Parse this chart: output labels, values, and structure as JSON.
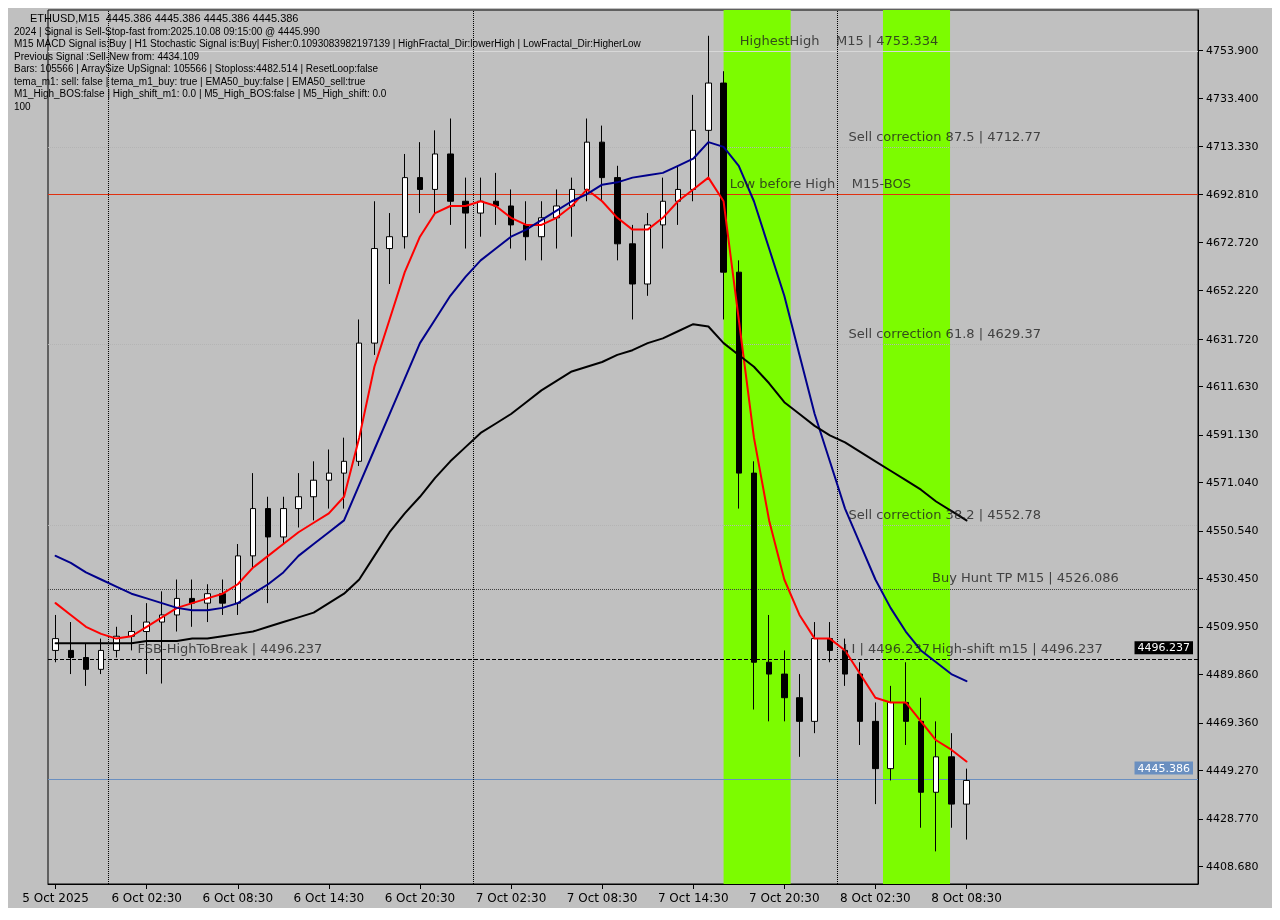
{
  "chart_data": {
    "type": "candlestick",
    "title": "ETHUSD,M15  4445.386 4445.386 4445.386 4445.386",
    "x": [
      "2025-10-05T20:30",
      "2025-10-05T21:30",
      "2025-10-05T22:30",
      "2025-10-05T23:30",
      "2025-10-06T00:30",
      "2025-10-06T01:30",
      "2025-10-06T02:30",
      "2025-10-06T03:30",
      "2025-10-06T04:30",
      "2025-10-06T05:30",
      "2025-10-06T06:30",
      "2025-10-06T07:30",
      "2025-10-06T08:30",
      "2025-10-06T09:30",
      "2025-10-06T10:30",
      "2025-10-06T11:30",
      "2025-10-06T12:30",
      "2025-10-06T13:30",
      "2025-10-06T14:30",
      "2025-10-06T15:30",
      "2025-10-06T16:30",
      "2025-10-06T17:30",
      "2025-10-06T18:30",
      "2025-10-06T19:30",
      "2025-10-06T20:30",
      "2025-10-06T21:30",
      "2025-10-06T22:30",
      "2025-10-06T23:30",
      "2025-10-07T00:30",
      "2025-10-07T01:30",
      "2025-10-07T02:30",
      "2025-10-07T03:30",
      "2025-10-07T04:30",
      "2025-10-07T05:30",
      "2025-10-07T06:30",
      "2025-10-07T07:30",
      "2025-10-07T08:30",
      "2025-10-07T09:30",
      "2025-10-07T10:30",
      "2025-10-07T11:30",
      "2025-10-07T12:30",
      "2025-10-07T13:30",
      "2025-10-07T14:30",
      "2025-10-07T15:30",
      "2025-10-07T16:30",
      "2025-10-07T17:30",
      "2025-10-07T18:30",
      "2025-10-07T19:30",
      "2025-10-07T20:30",
      "2025-10-07T21:30",
      "2025-10-07T22:30",
      "2025-10-07T23:30",
      "2025-10-08T00:30",
      "2025-10-08T01:30",
      "2025-10-08T02:30",
      "2025-10-08T03:30",
      "2025-10-08T04:30",
      "2025-10-08T05:30",
      "2025-10-08T06:30",
      "2025-10-08T07:30",
      "2025-10-08T08:30"
    ],
    "ohlc": [
      [
        4500,
        4515,
        4495,
        4505
      ],
      [
        4500,
        4512,
        4490,
        4497
      ],
      [
        4497,
        4503,
        4485,
        4492
      ],
      [
        4492,
        4505,
        4490,
        4500
      ],
      [
        4500,
        4510,
        4497,
        4506
      ],
      [
        4506,
        4515,
        4500,
        4508
      ],
      [
        4508,
        4520,
        4490,
        4512
      ],
      [
        4512,
        4525,
        4486,
        4515
      ],
      [
        4515,
        4530,
        4508,
        4522
      ],
      [
        4522,
        4530,
        4510,
        4520
      ],
      [
        4520,
        4528,
        4512,
        4524
      ],
      [
        4524,
        4530,
        4515,
        4520
      ],
      [
        4520,
        4545,
        4515,
        4540
      ],
      [
        4540,
        4575,
        4535,
        4560
      ],
      [
        4560,
        4565,
        4520,
        4548
      ],
      [
        4548,
        4565,
        4545,
        4560
      ],
      [
        4560,
        4575,
        4552,
        4565
      ],
      [
        4565,
        4580,
        4555,
        4572
      ],
      [
        4572,
        4585,
        4560,
        4575
      ],
      [
        4575,
        4590,
        4560,
        4580
      ],
      [
        4580,
        4640,
        4578,
        4630
      ],
      [
        4630,
        4690,
        4625,
        4670
      ],
      [
        4670,
        4685,
        4655,
        4675
      ],
      [
        4675,
        4710,
        4670,
        4700
      ],
      [
        4700,
        4715,
        4685,
        4695
      ],
      [
        4695,
        4720,
        4685,
        4710
      ],
      [
        4710,
        4725,
        4680,
        4690
      ],
      [
        4690,
        4700,
        4670,
        4685
      ],
      [
        4685,
        4700,
        4675,
        4690
      ],
      [
        4690,
        4702,
        4680,
        4688
      ],
      [
        4688,
        4695,
        4670,
        4680
      ],
      [
        4680,
        4690,
        4665,
        4675
      ],
      [
        4675,
        4690,
        4665,
        4683
      ],
      [
        4683,
        4695,
        4670,
        4688
      ],
      [
        4688,
        4700,
        4675,
        4695
      ],
      [
        4695,
        4725,
        4690,
        4715
      ],
      [
        4715,
        4722,
        4690,
        4700
      ],
      [
        4700,
        4705,
        4665,
        4672
      ],
      [
        4672,
        4680,
        4640,
        4655
      ],
      [
        4655,
        4685,
        4650,
        4680
      ],
      [
        4680,
        4700,
        4670,
        4690
      ],
      [
        4690,
        4705,
        4680,
        4695
      ],
      [
        4695,
        4735,
        4690,
        4720
      ],
      [
        4720,
        4760,
        4700,
        4740
      ],
      [
        4740,
        4745,
        4640,
        4660
      ],
      [
        4660,
        4665,
        4560,
        4575
      ],
      [
        4575,
        4580,
        4475,
        4495
      ],
      [
        4495,
        4515,
        4470,
        4490
      ],
      [
        4490,
        4500,
        4470,
        4480
      ],
      [
        4480,
        4490,
        4455,
        4470
      ],
      [
        4470,
        4512,
        4465,
        4505
      ],
      [
        4505,
        4512,
        4495,
        4500
      ],
      [
        4500,
        4505,
        4485,
        4490
      ],
      [
        4490,
        4495,
        4460,
        4470
      ],
      [
        4470,
        4478,
        4435,
        4450
      ],
      [
        4450,
        4485,
        4445,
        4478
      ],
      [
        4478,
        4495,
        4460,
        4470
      ],
      [
        4470,
        4480,
        4425,
        4440
      ],
      [
        4440,
        4470,
        4415,
        4455
      ],
      [
        4455,
        4465,
        4425,
        4435
      ],
      [
        4435,
        4450,
        4420,
        4445
      ]
    ],
    "color": "#000000",
    "series": [
      {
        "type": "line",
        "color": "#ff0000",
        "values": [
          4520,
          4515,
          4510,
          4507,
          4505,
          4506,
          4510,
          4514,
          4518,
          4520,
          4522,
          4524,
          4528,
          4535,
          4540,
          4545,
          4550,
          4554,
          4558,
          4565,
          4590,
          4620,
          4640,
          4660,
          4675,
          4685,
          4688,
          4688,
          4690,
          4688,
          4683,
          4680,
          4680,
          4683,
          4688,
          4695,
          4690,
          4683,
          4678,
          4678,
          4683,
          4690,
          4695,
          4700,
          4690,
          4640,
          4590,
          4555,
          4530,
          4515,
          4505,
          4505,
          4500,
          4490,
          4480,
          4478,
          4478,
          4470,
          4462,
          4458,
          4453
        ]
      },
      {
        "type": "line",
        "color": "#00008b",
        "values": [
          4540,
          4537,
          4533,
          4530,
          4527,
          4524,
          4522,
          4520,
          4518,
          4517,
          4517,
          4518,
          4520,
          4524,
          4528,
          4533,
          4540,
          4545,
          4550,
          4555,
          4570,
          4585,
          4600,
          4615,
          4630,
          4640,
          4650,
          4658,
          4665,
          4670,
          4675,
          4678,
          4682,
          4686,
          4690,
          4693,
          4697,
          4698,
          4700,
          4701,
          4702,
          4705,
          4708,
          4715,
          4713,
          4705,
          4690,
          4670,
          4650,
          4625,
          4600,
          4580,
          4560,
          4545,
          4530,
          4518,
          4508,
          4500,
          4495,
          4490,
          4487
        ]
      },
      {
        "type": "line",
        "color": "#000000",
        "values": [
          4503,
          4503,
          4503,
          4503,
          4503,
          4503,
          4504,
          4504,
          4504,
          4505,
          4505,
          4506,
          4507,
          4508,
          4510,
          4512,
          4514,
          4516,
          4520,
          4524,
          4530,
          4540,
          4550,
          4558,
          4565,
          4573,
          4580,
          4586,
          4592,
          4596,
          4600,
          4605,
          4610,
          4614,
          4618,
          4620,
          4622,
          4625,
          4627,
          4630,
          4632,
          4635,
          4638,
          4637,
          4630,
          4625,
          4620,
          4613,
          4605,
          4600,
          4595,
          4591,
          4588,
          4584,
          4580,
          4576,
          4572,
          4568,
          4563,
          4559,
          4555
        ]
      }
    ],
    "xlim": [
      "2025-10-05T20:00",
      "2025-10-08T23:45"
    ],
    "xticks": [
      {
        "value": "2025-10-05T20:30",
        "label": "5 Oct 2025"
      },
      {
        "value": "2025-10-06T02:30",
        "label": "6 Oct 02:30"
      },
      {
        "value": "2025-10-06T08:30",
        "label": "6 Oct 08:30"
      },
      {
        "value": "2025-10-06T14:30",
        "label": "6 Oct 14:30"
      },
      {
        "value": "2025-10-06T20:30",
        "label": "6 Oct 20:30"
      },
      {
        "value": "2025-10-07T02:30",
        "label": "7 Oct 02:30"
      },
      {
        "value": "2025-10-07T08:30",
        "label": "7 Oct 08:30"
      },
      {
        "value": "2025-10-07T14:30",
        "label": "7 Oct 14:30"
      },
      {
        "value": "2025-10-07T20:30",
        "label": "7 Oct 20:30"
      },
      {
        "value": "2025-10-08T02:30",
        "label": "8 Oct 02:30"
      },
      {
        "value": "2025-10-08T08:30",
        "label": "8 Oct 08:30"
      }
    ],
    "ylim": [
      4401.2,
      4770.9
    ],
    "yticks": [
      {
        "value": 4408.68,
        "label": "4408.680"
      },
      {
        "value": 4428.77,
        "label": "4428.770"
      },
      {
        "value": 4449.27,
        "label": "4449.270"
      },
      {
        "value": 4469.36,
        "label": "4469.360"
      },
      {
        "value": 4489.86,
        "label": "4489.860"
      },
      {
        "value": 4509.95,
        "label": "4509.950"
      },
      {
        "value": 4530.45,
        "label": "4530.450"
      },
      {
        "value": 4550.54,
        "label": "4550.540"
      },
      {
        "value": 4571.04,
        "label": "4571.040"
      },
      {
        "value": 4591.13,
        "label": "4591.130"
      },
      {
        "value": 4611.63,
        "label": "4611.630"
      },
      {
        "value": 4631.72,
        "label": "4631.720"
      },
      {
        "value": 4652.22,
        "label": "4652.220"
      },
      {
        "value": 4672.72,
        "label": "4672.720"
      },
      {
        "value": 4692.81,
        "label": "4692.810"
      },
      {
        "value": 4713.33,
        "label": "4713.330"
      },
      {
        "value": 4733.4,
        "label": "4733.400"
      },
      {
        "value": 4753.9,
        "label": "4753.900"
      }
    ],
    "grid": false,
    "bands": [
      {
        "axis": "x",
        "from": "2025-10-07T16:30",
        "to": "2025-10-07T20:55",
        "color": "#7cfc00"
      },
      {
        "axis": "x",
        "from": "2025-10-08T03:00",
        "to": "2025-10-08T07:25",
        "color": "#7cfc00"
      }
    ],
    "ref_lines": [
      {
        "axis": "y",
        "value": 4496.237,
        "label": "4496.237",
        "color": "#000000",
        "line_style": "dashed"
      },
      {
        "axis": "y",
        "value": 4445.386,
        "label": "4445.386",
        "color": "#6a8fc0",
        "line_style": "solid"
      },
      {
        "axis": "y",
        "value": 4753.334,
        "color": "#d8d8d8",
        "line_style": "solid"
      },
      {
        "axis": "y",
        "value": 4693,
        "color": "#e03010",
        "line_style": "solid"
      },
      {
        "axis": "y",
        "value": 4526.086,
        "color": "#404040",
        "line_style": "dotted"
      },
      {
        "axis": "y",
        "value": 4712.77,
        "color": "#b4b4b4",
        "line_style": "dotted"
      },
      {
        "axis": "y",
        "value": 4629.37,
        "color": "#b4b4b4",
        "line_style": "dotted"
      },
      {
        "axis": "y",
        "value": 4552.78,
        "color": "#b4b4b4",
        "line_style": "dotted"
      },
      {
        "axis": "x",
        "value": "2025-10-06T00:00",
        "color": "#000000",
        "line_style": "dotted"
      },
      {
        "axis": "x",
        "value": "2025-10-07T00:00",
        "color": "#000000",
        "line_style": "dotted"
      },
      {
        "axis": "x",
        "value": "2025-10-08T00:00",
        "color": "#000000",
        "line_style": "dotted"
      }
    ],
    "annotations": [
      "2024 | Signal is Sell-Stop-fast from:2025.10.08 09:15:00 @ 4445.990",
      "M15 MACD Signal is:Buy | H1 Stochastic Signal is:Buy| Fisher:0.1093083982197139 | HighFractal_Dir:lowerHigh | LowFractal_Dir:HigherLow",
      "Previous Signal :Sell-New from: 4434.109",
      "Bars: 105566 | ArraySize UpSignal: 105566 | Stoploss:4482.514 | ResetLoop:false",
      "tema_m1: sell: false | tema_m1_buy: true | EMA50_buy:false | EMA50_sell:true",
      "M1_High_BOS:false | High_shift_m1: 0.0 | M5_High_BOS:false | M5_High_shift: 0.0",
      {
        "text": "HighestHigh    M15 | 4753.334",
        "x": "2025-10-07T17:30",
        "y": 4753.334
      },
      "100",
      {
        "text": "Low before High    M15-BOS",
        "x": "2025-10-07T16:50",
        "y": 4693
      },
      {
        "text": "Sell correction 87.5 | 4712.77",
        "x": "2025-10-08T00:40",
        "y": 4712.77
      },
      {
        "text": "Sell correction 61.8 | 4629.37",
        "x": "2025-10-08T00:40",
        "y": 4629.37
      },
      {
        "text": "Sell correction 38.2 | 4552.78",
        "x": "2025-10-08T00:40",
        "y": 4552.78
      },
      {
        "text": "Buy Hunt TP M15 | 4526.086",
        "x": "2025-10-08T06:10",
        "y": 4526.086
      },
      {
        "text": "I I | 4496.237",
        "x": "2025-10-08T00:20",
        "y": 4496.237
      },
      {
        "text": "High-shift m15 | 4496.237",
        "x": "2025-10-08T06:10",
        "y": 4496.237
      },
      {
        "text": "FSB-HighToBreak | 4496.237",
        "x": "2025-10-06T01:50",
        "y": 4496.237
      }
    ]
  }
}
